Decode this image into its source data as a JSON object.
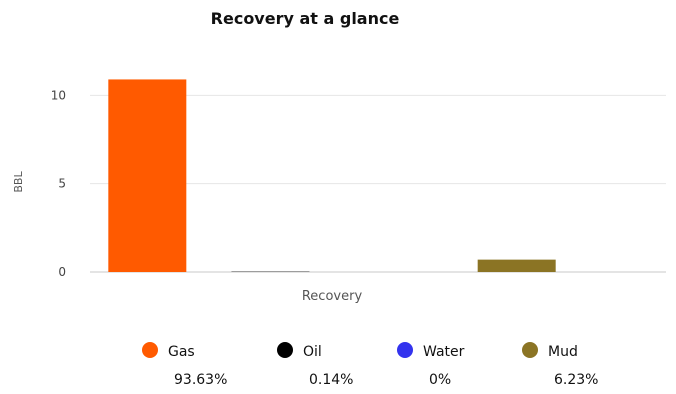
{
  "chart_data": {
    "type": "bar",
    "title": "Recovery at a glance",
    "xlabel": "",
    "ylabel": "BBL",
    "categories": [
      "Recovery"
    ],
    "ylim": [
      0,
      12
    ],
    "yticks": [
      0,
      5,
      10
    ],
    "grid": true,
    "legend_position": "bottom",
    "series": [
      {
        "name": "Gas",
        "values": [
          10.9
        ],
        "color": "#ff5a00",
        "percent": "93.63%"
      },
      {
        "name": "Oil",
        "values": [
          0.02
        ],
        "color": "#000000",
        "percent": "0.14%"
      },
      {
        "name": "Water",
        "values": [
          0
        ],
        "color": "#3333ee",
        "percent": "0%"
      },
      {
        "name": "Mud",
        "values": [
          0.7
        ],
        "color": "#8b7424",
        "percent": "6.23%"
      }
    ]
  }
}
